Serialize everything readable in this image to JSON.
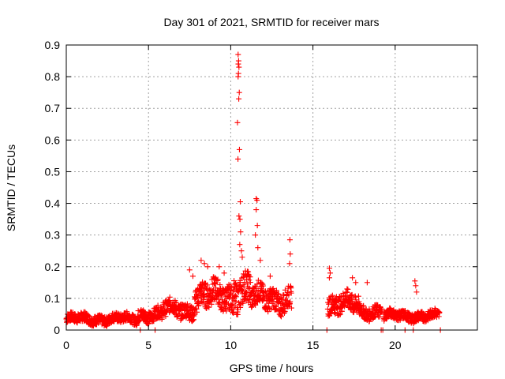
{
  "chart_data": {
    "type": "scatter",
    "title": "Day 301 of 2021, SRMTID for receiver mars",
    "xlabel": "GPS time / hours",
    "ylabel": "SRMTID / TECUs",
    "xlim": [
      0,
      25
    ],
    "ylim": [
      0,
      0.9
    ],
    "xticks": [
      0,
      5,
      10,
      15,
      20
    ],
    "xtick_labels": [
      "0",
      "5",
      "10",
      "15",
      "20"
    ],
    "yticks": [
      0,
      0.1,
      0.2,
      0.3,
      0.4,
      0.5,
      0.6,
      0.7,
      0.8,
      0.9
    ],
    "ytick_labels": [
      "0",
      "0.1",
      "0.2",
      "0.3",
      "0.4",
      "0.5",
      "0.6",
      "0.7",
      "0.8",
      "0.9"
    ],
    "grid": true,
    "marker": "+",
    "series": [
      {
        "name": "SRMTID",
        "color": "#ff0000",
        "segments": [
          {
            "x_start": 0.0,
            "x_end": 4.3,
            "base": 0.035,
            "spread": 0.015
          },
          {
            "x_start": 4.3,
            "x_end": 5.9,
            "base": 0.05,
            "spread": 0.02
          },
          {
            "x_start": 5.9,
            "x_end": 7.8,
            "base": 0.065,
            "spread": 0.025
          },
          {
            "x_start": 7.8,
            "x_end": 10.2,
            "base": 0.105,
            "spread": 0.04
          },
          {
            "x_start": 10.2,
            "x_end": 11.2,
            "base": 0.13,
            "spread": 0.05
          },
          {
            "x_start": 11.2,
            "x_end": 13.7,
            "base": 0.1,
            "spread": 0.035
          },
          {
            "x_start": 15.9,
            "x_end": 17.8,
            "base": 0.08,
            "spread": 0.03
          },
          {
            "x_start": 17.8,
            "x_end": 19.2,
            "base": 0.06,
            "spread": 0.02
          },
          {
            "x_start": 19.3,
            "x_end": 22.7,
            "base": 0.045,
            "spread": 0.015
          }
        ],
        "peaks": [
          {
            "x": 10.45,
            "y": 0.87
          },
          {
            "x": 10.48,
            "y": 0.85
          },
          {
            "x": 10.46,
            "y": 0.84
          },
          {
            "x": 10.5,
            "y": 0.83
          },
          {
            "x": 10.47,
            "y": 0.81
          },
          {
            "x": 10.45,
            "y": 0.8
          },
          {
            "x": 10.52,
            "y": 0.75
          },
          {
            "x": 10.49,
            "y": 0.73
          },
          {
            "x": 10.41,
            "y": 0.655
          },
          {
            "x": 10.53,
            "y": 0.57
          },
          {
            "x": 10.44,
            "y": 0.54
          },
          {
            "x": 10.58,
            "y": 0.405
          },
          {
            "x": 10.5,
            "y": 0.36
          },
          {
            "x": 10.56,
            "y": 0.35
          },
          {
            "x": 10.6,
            "y": 0.31
          },
          {
            "x": 10.55,
            "y": 0.27
          },
          {
            "x": 10.65,
            "y": 0.25
          },
          {
            "x": 10.7,
            "y": 0.23
          },
          {
            "x": 11.55,
            "y": 0.415
          },
          {
            "x": 11.6,
            "y": 0.41
          },
          {
            "x": 11.55,
            "y": 0.38
          },
          {
            "x": 11.62,
            "y": 0.33
          },
          {
            "x": 11.5,
            "y": 0.3
          },
          {
            "x": 11.65,
            "y": 0.26
          },
          {
            "x": 11.8,
            "y": 0.22
          },
          {
            "x": 13.6,
            "y": 0.285
          },
          {
            "x": 13.62,
            "y": 0.24
          },
          {
            "x": 13.58,
            "y": 0.21
          },
          {
            "x": 8.2,
            "y": 0.22
          },
          {
            "x": 8.4,
            "y": 0.21
          },
          {
            "x": 8.6,
            "y": 0.2
          },
          {
            "x": 7.5,
            "y": 0.19
          },
          {
            "x": 7.7,
            "y": 0.17
          },
          {
            "x": 9.3,
            "y": 0.2
          },
          {
            "x": 9.6,
            "y": 0.18
          },
          {
            "x": 12.4,
            "y": 0.17
          },
          {
            "x": 16.0,
            "y": 0.195
          },
          {
            "x": 16.05,
            "y": 0.18
          },
          {
            "x": 16.0,
            "y": 0.165
          },
          {
            "x": 17.4,
            "y": 0.165
          },
          {
            "x": 17.6,
            "y": 0.15
          },
          {
            "x": 18.3,
            "y": 0.15
          },
          {
            "x": 21.2,
            "y": 0.155
          },
          {
            "x": 21.25,
            "y": 0.14
          },
          {
            "x": 21.3,
            "y": 0.12
          }
        ],
        "zero_points": [
          {
            "x": 4.5,
            "y": 0
          },
          {
            "x": 5.4,
            "y": 0
          },
          {
            "x": 15.85,
            "y": 0
          },
          {
            "x": 19.15,
            "y": 0
          },
          {
            "x": 19.25,
            "y": 0
          },
          {
            "x": 20.6,
            "y": 0
          },
          {
            "x": 21.1,
            "y": 0
          },
          {
            "x": 22.75,
            "y": 0
          }
        ]
      }
    ]
  }
}
